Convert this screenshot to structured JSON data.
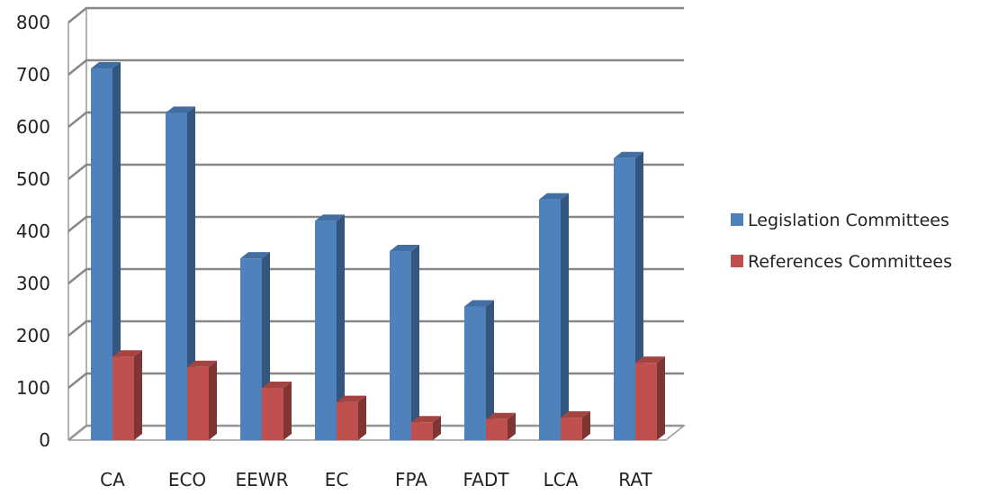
{
  "chart_data": {
    "type": "bar",
    "variant": "3d-clustered-column",
    "categories": [
      "CA",
      "ECO",
      "EEWR",
      "EC",
      "FPA",
      "FADT",
      "LCA",
      "RAT"
    ],
    "series": [
      {
        "name": "Legislation Committees",
        "color": "#4f81bd",
        "values": [
          712,
          627,
          348,
          420,
          362,
          256,
          461,
          540
        ]
      },
      {
        "name": "References Committees",
        "color": "#c0504d",
        "values": [
          160,
          140,
          100,
          73,
          34,
          40,
          43,
          148
        ]
      }
    ],
    "y_ticks": [
      "0",
      "100",
      "200",
      "300",
      "400",
      "500",
      "600",
      "700",
      "800"
    ],
    "ylim": [
      0,
      800
    ],
    "grid": true,
    "legend_position": "right",
    "title": "",
    "xlabel": "",
    "ylabel": ""
  }
}
